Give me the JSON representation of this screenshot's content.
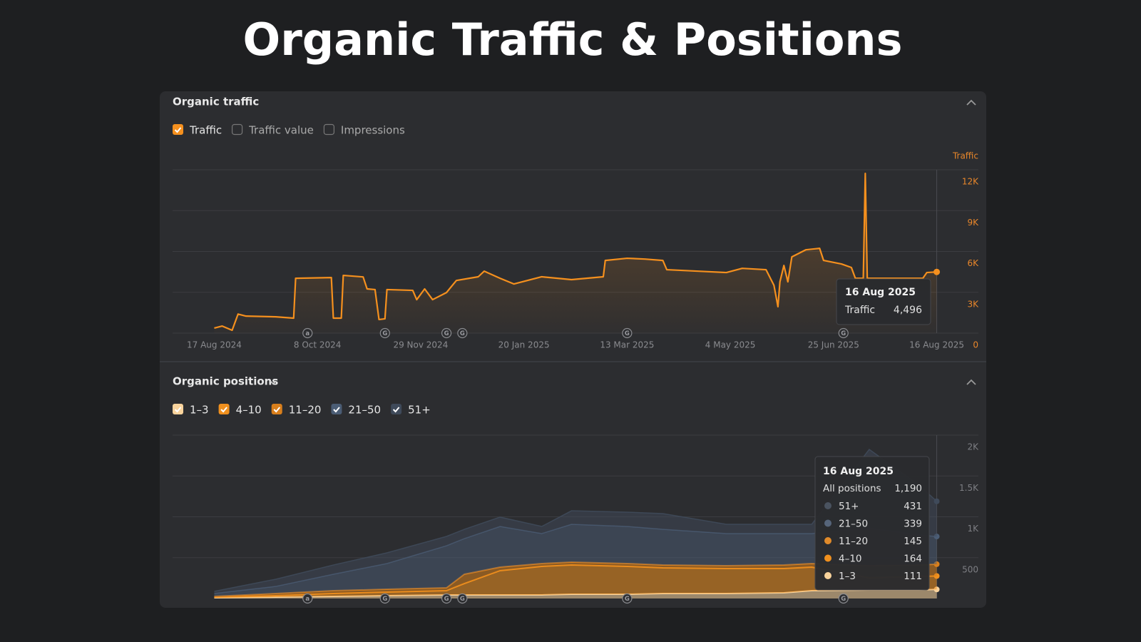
{
  "title": "Organic Traffic & Positions",
  "panels": [
    {
      "title": "Organic traffic",
      "toggles": [
        {
          "label": "Traffic value",
          "checked": false
        },
        {
          "label": "Impressions",
          "checked": false
        }
      ]
    },
    {
      "title": "Organic positions"
    }
  ],
  "tooltips": [
    {
      "title": "16 Aug 2025",
      "rows": [
        {
          "name": "Traffic",
          "value": "4,496"
        }
      ]
    },
    {
      "title": "16 Aug 2025",
      "total": {
        "name": "All positions",
        "value": "1,190"
      },
      "rows": [
        {
          "name": "51+",
          "value": "431",
          "color": "#4a5360"
        },
        {
          "name": "21–50",
          "value": "339",
          "color": "#56657a"
        },
        {
          "name": "11–20",
          "value": "145",
          "color": "#e08a2a"
        },
        {
          "name": "4–10",
          "value": "164",
          "color": "#f0901e"
        },
        {
          "name": "1–3",
          "value": "111",
          "color": "#f9d39c"
        }
      ]
    }
  ],
  "chart_data": [
    {
      "type": "line",
      "ylabel": "Traffic",
      "x": [
        "2024-08-17",
        "2024-08-21",
        "2024-08-26",
        "2024-08-29",
        "2024-09-02",
        "2024-09-17",
        "2024-09-26",
        "2024-09-27",
        "2024-10-15",
        "2024-10-16",
        "2024-10-20",
        "2024-10-21",
        "2024-10-31",
        "2024-11-02",
        "2024-11-06",
        "2024-11-08",
        "2024-11-11",
        "2024-11-12",
        "2024-11-25",
        "2024-11-27",
        "2024-12-01",
        "2024-12-05",
        "2024-12-12",
        "2024-12-17",
        "2024-12-28",
        "2024-12-31",
        "2025-01-08",
        "2025-01-15",
        "2025-01-29",
        "2025-02-13",
        "2025-03-01",
        "2025-03-02",
        "2025-03-13",
        "2025-03-22",
        "2025-03-31",
        "2025-04-02",
        "2025-04-18",
        "2025-05-02",
        "2025-05-10",
        "2025-05-22",
        "2025-05-26",
        "2025-05-28",
        "2025-05-29",
        "2025-05-31",
        "2025-06-02",
        "2025-06-04",
        "2025-06-11",
        "2025-06-18",
        "2025-06-20",
        "2025-06-29",
        "2025-07-04",
        "2025-07-06",
        "2025-07-10",
        "2025-07-11",
        "2025-07-12",
        "2025-08-09",
        "2025-08-11",
        "2025-08-16"
      ],
      "series": [
        {
          "name": "Traffic",
          "color": "#f5901e",
          "checked": true,
          "values": [
            370,
            520,
            210,
            1400,
            1250,
            1200,
            1100,
            4030,
            4080,
            1100,
            1100,
            4240,
            4130,
            3250,
            3200,
            1000,
            1050,
            3200,
            3140,
            2460,
            3250,
            2460,
            2980,
            3870,
            4140,
            4550,
            4030,
            3610,
            4140,
            3930,
            4140,
            5340,
            5500,
            5440,
            5340,
            4660,
            4550,
            4450,
            4760,
            4660,
            3510,
            1940,
            3770,
            4970,
            3770,
            5600,
            6120,
            6230,
            5340,
            5080,
            4820,
            4030,
            4030,
            11730,
            4030,
            4030,
            4450,
            4496
          ]
        }
      ],
      "xlim": [
        "2024-07-27",
        "2025-09-06"
      ],
      "xticks": [
        {
          "value": "2024-08-17",
          "label": "17 Aug 2024"
        },
        {
          "value": "2024-10-08",
          "label": "8 Oct 2024"
        },
        {
          "value": "2024-11-29",
          "label": "29 Nov 2024"
        },
        {
          "value": "2025-01-20",
          "label": "20 Jan 2025"
        },
        {
          "value": "2025-03-13",
          "label": "13 Mar 2025"
        },
        {
          "value": "2025-05-04",
          "label": "4 May 2025"
        },
        {
          "value": "2025-06-25",
          "label": "25 Jun 2025"
        },
        {
          "value": "2025-08-16",
          "label": "16 Aug 2025"
        }
      ],
      "ylim": [
        0,
        12000
      ],
      "yticks": [
        0,
        {
          "value": 3000,
          "label": "3K"
        },
        {
          "value": 6000,
          "label": "6K"
        },
        {
          "value": 9000,
          "label": "9K"
        },
        {
          "value": 12000,
          "label": "12K"
        }
      ],
      "grid": true,
      "annotations": [
        {
          "x": "2024-10-03",
          "label": "a"
        },
        {
          "x": "2024-11-11",
          "label": "G"
        },
        {
          "x": "2024-12-12",
          "label": "G"
        },
        {
          "x": "2024-12-20",
          "label": "G"
        },
        {
          "x": "2025-03-13",
          "label": "G"
        },
        {
          "x": "2025-06-30",
          "label": "G"
        }
      ]
    },
    {
      "type": "area",
      "stacked": true,
      "x": [
        "2024-08-17",
        "2024-09-17",
        "2024-10-16",
        "2024-11-12",
        "2024-12-12",
        "2024-12-21",
        "2025-01-08",
        "2025-01-29",
        "2025-02-13",
        "2025-03-13",
        "2025-03-31",
        "2025-05-02",
        "2025-05-31",
        "2025-06-14",
        "2025-07-13",
        "2025-08-07",
        "2025-08-16"
      ],
      "series": [
        {
          "name": "1–3",
          "color": "#f9d39c",
          "values": [
            9,
            17,
            26,
            35,
            44,
            44,
            44,
            44,
            52,
            52,
            61,
            61,
            70,
            96,
            105,
            105,
            111
          ]
        },
        {
          "name": "4–10",
          "color": "#f0901e",
          "values": [
            8,
            18,
            35,
            44,
            52,
            139,
            297,
            349,
            358,
            341,
            315,
            306,
            297,
            288,
            148,
            166,
            164
          ]
        },
        {
          "name": "11–20",
          "color": "#d97f1c",
          "values": [
            9,
            26,
            35,
            34,
            35,
            114,
            43,
            35,
            35,
            35,
            34,
            35,
            43,
            44,
            149,
            139,
            145
          ]
        },
        {
          "name": "21–50",
          "color": "#4b5d75",
          "values": [
            35,
            87,
            201,
            315,
            515,
            436,
            498,
            367,
            463,
            454,
            437,
            393,
            385,
            367,
            462,
            367,
            339
          ]
        },
        {
          "name": "51+",
          "color": "#3f4a5a",
          "values": [
            26,
            88,
            113,
            131,
            114,
            114,
            114,
            87,
            166,
            175,
            192,
            113,
            113,
            113,
            961,
            612,
            431
          ]
        }
      ],
      "xlim": [
        "2024-07-27",
        "2025-09-06"
      ],
      "ylim": [
        0,
        2000
      ],
      "yticks": [
        500,
        {
          "value": 1000,
          "label": "1K"
        },
        {
          "value": 1500,
          "label": "1.5K"
        },
        {
          "value": 2000,
          "label": "2K"
        }
      ],
      "grid": true,
      "annotations": [
        {
          "x": "2024-10-03",
          "label": "a"
        },
        {
          "x": "2024-11-11",
          "label": "G"
        },
        {
          "x": "2024-12-12",
          "label": "G"
        },
        {
          "x": "2024-12-20",
          "label": "G"
        },
        {
          "x": "2025-03-13",
          "label": "G"
        },
        {
          "x": "2025-06-30",
          "label": "G"
        }
      ]
    }
  ]
}
